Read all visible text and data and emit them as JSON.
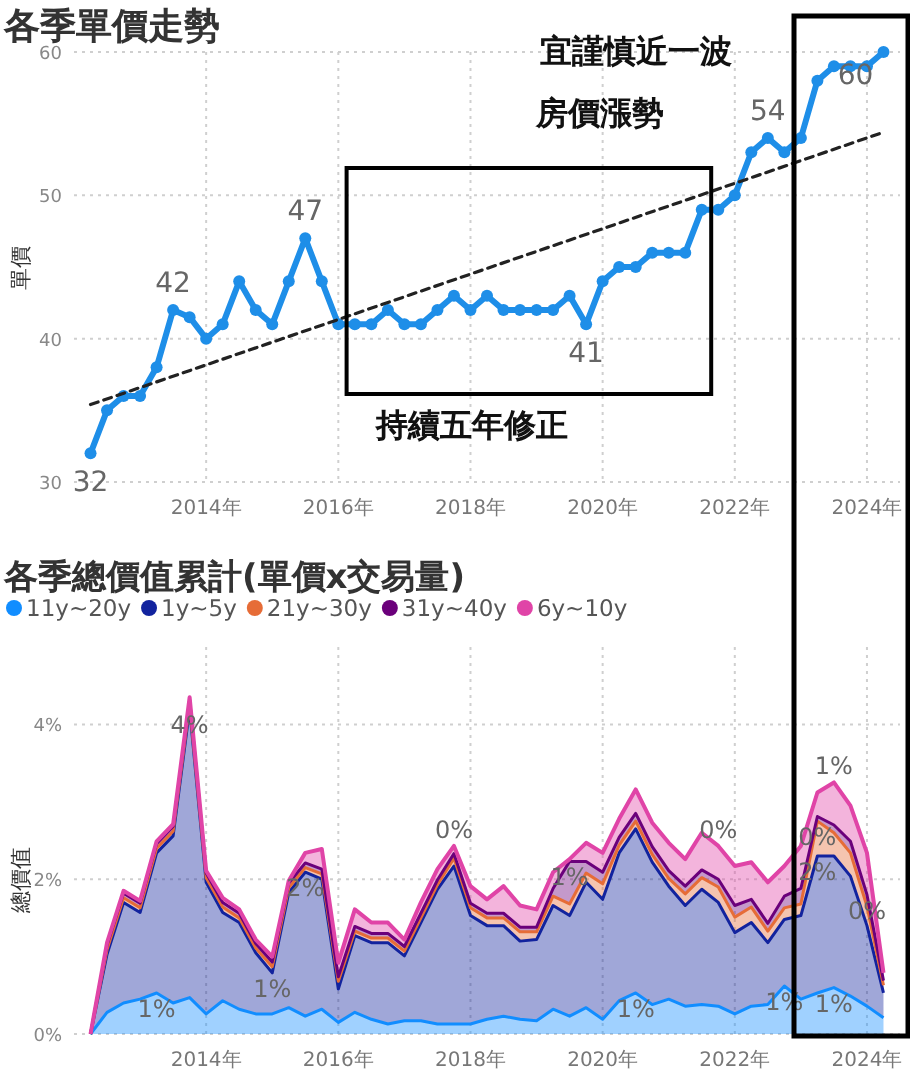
{
  "chart_data": [
    {
      "type": "line",
      "title": "各季單價走勢",
      "ylabel": "單價",
      "x": [
        "2012-04",
        "2012-07",
        "2012-10",
        "2013-01",
        "2013-04",
        "2013-07",
        "2013-10",
        "2014-01",
        "2014-04",
        "2014-07",
        "2014-10",
        "2015-01",
        "2015-04",
        "2015-07",
        "2015-10",
        "2016-01",
        "2016-04",
        "2016-07",
        "2016-10",
        "2017-01",
        "2017-04",
        "2017-07",
        "2017-10",
        "2018-01",
        "2018-04",
        "2018-07",
        "2018-10",
        "2019-01",
        "2019-04",
        "2019-07",
        "2019-10",
        "2020-01",
        "2020-04",
        "2020-07",
        "2020-10",
        "2021-01",
        "2021-04",
        "2021-07",
        "2021-10",
        "2022-01",
        "2022-04",
        "2022-07",
        "2022-10",
        "2023-01",
        "2023-04",
        "2023-07",
        "2023-10",
        "2024-01",
        "2024-04"
      ],
      "series": [
        {
          "color": "#1e8ee8",
          "marker": "circle",
          "values": [
            32,
            35,
            36,
            36,
            38,
            42,
            41.5,
            40,
            41,
            44,
            42,
            41,
            44,
            47,
            44,
            41,
            41,
            41,
            42,
            41,
            41,
            42,
            43,
            42,
            43,
            42,
            42,
            42,
            42,
            43,
            41,
            44,
            45,
            45,
            46,
            46,
            46,
            49,
            49,
            50,
            53,
            54,
            53,
            54,
            58,
            59,
            59,
            59,
            60
          ],
          "value_labels": [
            "32",
            null,
            null,
            null,
            null,
            "42",
            null,
            null,
            null,
            null,
            null,
            null,
            null,
            "47",
            null,
            null,
            null,
            null,
            null,
            null,
            null,
            null,
            null,
            null,
            null,
            null,
            null,
            null,
            null,
            null,
            "41",
            null,
            null,
            null,
            null,
            null,
            null,
            null,
            null,
            null,
            null,
            "54",
            null,
            null,
            null,
            null,
            null,
            null,
            "60"
          ]
        },
        {
          "type": "line",
          "x": [
            "2012-04",
            "2024-04"
          ],
          "values": [
            35.4,
            54.4
          ],
          "color": "#222222",
          "line_style": "dashed",
          "marker": "none"
        }
      ],
      "xlim": [
        "2012-01",
        "2024-07"
      ],
      "xticks": [
        {
          "value": "2014-01",
          "label": "2014年"
        },
        {
          "value": "2016-01",
          "label": "2016年"
        },
        {
          "value": "2018-01",
          "label": "2018年"
        },
        {
          "value": "2020-01",
          "label": "2020年"
        },
        {
          "value": "2022-01",
          "label": "2022年"
        },
        {
          "value": "2024-01",
          "label": "2024年"
        }
      ],
      "ylim": [
        30,
        60
      ],
      "yticks": [
        30,
        40,
        50,
        60
      ],
      "grid": true,
      "annotations": [
        "宜謹慎近一波",
        "房價漲勢",
        "持續五年修正"
      ]
    },
    {
      "type": "area",
      "stacked": true,
      "title": "各季總價值累計(單價x交易量)",
      "ylabel": "總價值",
      "legend": "top left",
      "x": [
        "2012-04",
        "2012-07",
        "2012-10",
        "2013-01",
        "2013-04",
        "2013-07",
        "2013-10",
        "2014-01",
        "2014-04",
        "2014-07",
        "2014-10",
        "2015-01",
        "2015-04",
        "2015-07",
        "2015-10",
        "2016-01",
        "2016-04",
        "2016-07",
        "2016-10",
        "2017-01",
        "2017-04",
        "2017-07",
        "2017-10",
        "2018-01",
        "2018-04",
        "2018-07",
        "2018-10",
        "2019-01",
        "2019-04",
        "2019-07",
        "2019-10",
        "2020-01",
        "2020-04",
        "2020-07",
        "2020-10",
        "2021-01",
        "2021-04",
        "2021-07",
        "2021-10",
        "2022-01",
        "2022-04",
        "2022-07",
        "2022-10",
        "2023-01",
        "2023-04",
        "2023-07",
        "2023-10",
        "2024-01",
        "2024-04"
      ],
      "series": [
        {
          "name": "11y~20y",
          "color": "#118dff",
          "values": [
            0,
            0.28,
            0.4,
            0.45,
            0.53,
            0.4,
            0.47,
            0.26,
            0.43,
            0.32,
            0.26,
            0.26,
            0.34,
            0.23,
            0.32,
            0.15,
            0.28,
            0.19,
            0.13,
            0.17,
            0.17,
            0.13,
            0.13,
            0.13,
            0.19,
            0.23,
            0.19,
            0.17,
            0.32,
            0.23,
            0.34,
            0.19,
            0.43,
            0.53,
            0.38,
            0.45,
            0.36,
            0.38,
            0.36,
            0.26,
            0.36,
            0.38,
            0.62,
            0.45,
            0.53,
            0.6,
            0.49,
            0.36,
            0.21
          ],
          "value_labels": [
            null,
            null,
            null,
            null,
            "1%",
            null,
            null,
            null,
            null,
            null,
            null,
            null,
            null,
            null,
            null,
            null,
            null,
            null,
            null,
            null,
            null,
            null,
            null,
            null,
            null,
            null,
            null,
            null,
            null,
            null,
            null,
            null,
            null,
            "1%",
            null,
            null,
            null,
            null,
            null,
            null,
            null,
            null,
            "1%",
            null,
            null,
            "1%",
            null,
            null,
            null
          ]
        },
        {
          "name": "1y~5y",
          "color": "#12239e",
          "values": [
            0,
            0.75,
            1.3,
            1.12,
            1.81,
            2.16,
            3.73,
            1.7,
            1.14,
            1.12,
            0.79,
            0.53,
            1.49,
            1.86,
            1.68,
            0.43,
            0.99,
            0.99,
            1.05,
            0.84,
            1.27,
            1.74,
            2.04,
            1.4,
            1.21,
            1.17,
            1.01,
            1.05,
            1.34,
            1.3,
            1.62,
            1.55,
            1.91,
            2.12,
            1.84,
            1.46,
            1.3,
            1.49,
            1.34,
            1.05,
            1.08,
            0.8,
            0.86,
            1.08,
            1.77,
            1.7,
            1.55,
            1.04,
            0.32
          ],
          "value_labels": [
            null,
            null,
            null,
            null,
            null,
            null,
            "4%",
            null,
            null,
            null,
            null,
            "1%",
            null,
            "2%",
            null,
            null,
            null,
            null,
            null,
            null,
            null,
            null,
            null,
            null,
            null,
            null,
            null,
            null,
            null,
            null,
            null,
            null,
            null,
            null,
            null,
            null,
            null,
            null,
            null,
            null,
            null,
            null,
            null,
            null,
            "2%",
            null,
            null,
            null,
            null
          ]
        },
        {
          "name": "21y~30y",
          "color": "#e66c37",
          "values": [
            0,
            0.06,
            0.06,
            0.06,
            0.06,
            0.06,
            0.06,
            0.06,
            0.07,
            0.06,
            0.06,
            0.08,
            0.06,
            0.06,
            0.07,
            0.1,
            0.06,
            0.06,
            0.06,
            0.06,
            0.06,
            0.06,
            0.1,
            0.1,
            0.1,
            0.1,
            0.12,
            0.1,
            0.12,
            0.15,
            0.12,
            0.2,
            0.1,
            0.1,
            0.1,
            0.1,
            0.15,
            0.15,
            0.2,
            0.2,
            0.2,
            0.15,
            0.15,
            0.15,
            0.45,
            0.3,
            0.3,
            0.25,
            0.1
          ],
          "value_labels": [
            null,
            null,
            null,
            null,
            null,
            null,
            null,
            null,
            null,
            null,
            null,
            null,
            null,
            null,
            null,
            null,
            null,
            null,
            null,
            null,
            null,
            null,
            null,
            null,
            null,
            null,
            null,
            null,
            null,
            null,
            null,
            null,
            null,
            null,
            null,
            null,
            null,
            null,
            null,
            null,
            null,
            null,
            null,
            null,
            "0%",
            null,
            null,
            null,
            null
          ]
        },
        {
          "name": "31y~40y",
          "color": "#6b007b",
          "values": [
            0,
            0.06,
            0.06,
            0.06,
            0.06,
            0.06,
            0.06,
            0.06,
            0.06,
            0.06,
            0.06,
            0.06,
            0.06,
            0.06,
            0.06,
            0.06,
            0.06,
            0.06,
            0.06,
            0.06,
            0.06,
            0.06,
            0.06,
            0.06,
            0.06,
            0.06,
            0.06,
            0.06,
            0.1,
            0.55,
            0.15,
            0.15,
            0.1,
            0.1,
            0.1,
            0.1,
            0.1,
            0.1,
            0.1,
            0.15,
            0.1,
            0.1,
            0.15,
            0.2,
            0.06,
            0.1,
            0.15,
            0.15,
            0.06
          ],
          "value_labels": [
            null,
            null,
            null,
            null,
            null,
            null,
            null,
            null,
            null,
            null,
            null,
            null,
            null,
            null,
            null,
            null,
            null,
            null,
            null,
            null,
            null,
            null,
            null,
            null,
            null,
            null,
            null,
            null,
            null,
            "1%",
            null,
            null,
            null,
            null,
            null,
            null,
            null,
            null,
            null,
            null,
            null,
            null,
            null,
            null,
            null,
            null,
            null,
            "0%",
            null
          ]
        },
        {
          "name": "6y~10y",
          "color": "#e044a7",
          "values": [
            0,
            0.03,
            0.03,
            0.03,
            0.03,
            0.03,
            0.03,
            0.03,
            0.06,
            0.05,
            0.05,
            0.07,
            0.03,
            0.13,
            0.26,
            0.18,
            0.22,
            0.14,
            0.14,
            0.09,
            0.14,
            0.14,
            0.1,
            0.22,
            0.18,
            0.35,
            0.28,
            0.23,
            0.21,
            0.03,
            0.24,
            0.25,
            0.24,
            0.31,
            0.31,
            0.36,
            0.35,
            0.48,
            0.43,
            0.51,
            0.48,
            0.53,
            0.39,
            0.55,
            0.31,
            0.55,
            0.46,
            0.54,
            0.1
          ],
          "value_labels": [
            null,
            null,
            null,
            null,
            null,
            null,
            null,
            null,
            null,
            null,
            null,
            null,
            null,
            null,
            null,
            null,
            null,
            null,
            null,
            null,
            null,
            null,
            "0%",
            null,
            null,
            null,
            null,
            null,
            null,
            null,
            null,
            null,
            null,
            null,
            null,
            null,
            null,
            null,
            "0%",
            null,
            null,
            null,
            null,
            null,
            null,
            "1%",
            null,
            null,
            null
          ]
        }
      ],
      "xlim": [
        "2012-01",
        "2024-07"
      ],
      "xticks": [
        {
          "value": "2014-01",
          "label": "2014年"
        },
        {
          "value": "2016-01",
          "label": "2016年"
        },
        {
          "value": "2018-01",
          "label": "2018年"
        },
        {
          "value": "2020-01",
          "label": "2020年"
        },
        {
          "value": "2022-01",
          "label": "2022年"
        },
        {
          "value": "2024-01",
          "label": "2024年"
        }
      ],
      "ylim": [
        0,
        5
      ],
      "yticks": [
        {
          "value": 0,
          "label": "0%"
        },
        {
          "value": 2,
          "label": "2%"
        },
        {
          "value": 4,
          "label": "4%"
        }
      ],
      "grid": true
    }
  ]
}
